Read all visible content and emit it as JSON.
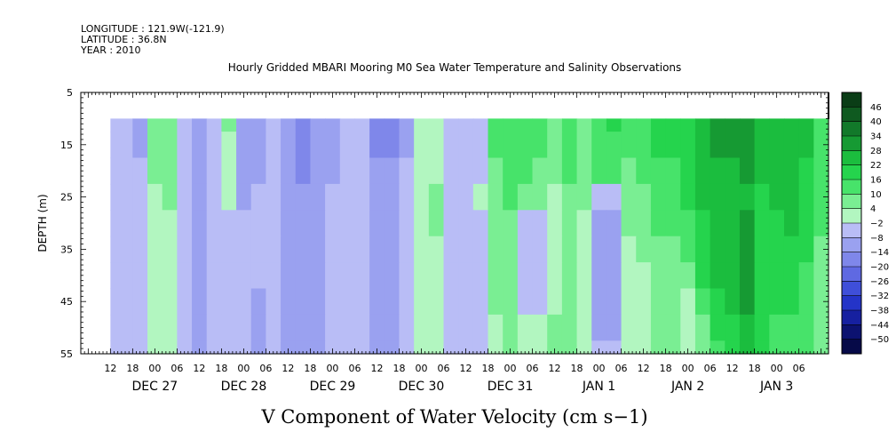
{
  "header": {
    "longitude": "LONGITUDE : 121.9W(-121.9)",
    "latitude": "LATITUDE : 36.8N",
    "year": "YEAR : 2010"
  },
  "chart_data": {
    "type": "heatmap",
    "title": "Hourly Gridded MBARI Mooring M0 Sea Water Temperature and Salinity Observations",
    "xlabel": "V Component of Water Velocity (cm s−1)",
    "ylabel": "DEPTH (m)",
    "ylim": [
      55,
      5
    ],
    "y_ticks": [
      "5",
      "15",
      "25",
      "35",
      "45",
      "55"
    ],
    "x_hour_ticks": [
      "12",
      "18",
      "00",
      "06",
      "12",
      "18",
      "00",
      "06",
      "12",
      "18",
      "00",
      "06",
      "12",
      "18",
      "00",
      "06",
      "12",
      "18",
      "00",
      "06",
      "12",
      "18",
      "00",
      "06",
      "12",
      "18",
      "00",
      "06",
      "12",
      "18",
      "00",
      "06"
    ],
    "x_day_labels": [
      "DEC 27",
      "DEC 28",
      "DEC 29",
      "DEC 30",
      "DEC 31",
      "JAN  1",
      "JAN  2",
      "JAN  3"
    ],
    "colorbar": {
      "labels": [
        "46",
        "40",
        "34",
        "28",
        "22",
        "16",
        "10",
        "4",
        "−2",
        "−8",
        "−14",
        "−20",
        "−26",
        "−32",
        "−38",
        "−44",
        "−50"
      ],
      "colors": [
        "#0a3d16",
        "#0f5a20",
        "#12792a",
        "#169a33",
        "#1bbd3e",
        "#25d44d",
        "#47e36a",
        "#7aee93",
        "#b2f6c0",
        "#b9bdf6",
        "#9aa1f0",
        "#7f87ea",
        "#5f69e2",
        "#3f4fd9",
        "#2434c8",
        "#1620a0",
        "#0c1270",
        "#060a48"
      ]
    },
    "x_hours": [
      -8,
      -4,
      0,
      4,
      8,
      12,
      16,
      20,
      24,
      28,
      32,
      36,
      40,
      44,
      48,
      52,
      56,
      60,
      64,
      68,
      72,
      76,
      80,
      84,
      88,
      92,
      96,
      100,
      104,
      108,
      112,
      116,
      120,
      124,
      128,
      132,
      136,
      140,
      144,
      148,
      152,
      156,
      160,
      164,
      168,
      172,
      176,
      180
    ],
    "depths": [
      10,
      15,
      20,
      25,
      30,
      35,
      40,
      45,
      50,
      55
    ],
    "values": [
      [
        -6,
        -8,
        8,
        10,
        -6,
        -10,
        -4,
        6,
        -8,
        -8,
        -4,
        -12,
        -14,
        -12,
        -8,
        -4,
        -6,
        -14,
        -14,
        -8,
        2,
        4,
        -4,
        -6,
        -4,
        12,
        16,
        14,
        14,
        10,
        14,
        10,
        16,
        18,
        12,
        14,
        18,
        18,
        22,
        28,
        30,
        30,
        30,
        24,
        28,
        28,
        24,
        16
      ],
      [
        -6,
        -8,
        8,
        10,
        -4,
        -10,
        -4,
        4,
        -8,
        -8,
        -4,
        -12,
        -14,
        -12,
        -8,
        -4,
        -6,
        -14,
        -14,
        -8,
        2,
        4,
        -4,
        -6,
        -4,
        12,
        16,
        14,
        12,
        8,
        14,
        10,
        14,
        16,
        12,
        14,
        18,
        18,
        22,
        28,
        30,
        30,
        32,
        24,
        28,
        28,
        24,
        14
      ],
      [
        -6,
        -6,
        6,
        8,
        -4,
        -10,
        -6,
        4,
        -8,
        -8,
        -4,
        -10,
        -14,
        -12,
        -8,
        -4,
        -6,
        -12,
        -12,
        -6,
        2,
        4,
        -4,
        -6,
        -2,
        10,
        14,
        12,
        10,
        6,
        12,
        8,
        12,
        14,
        10,
        12,
        16,
        16,
        20,
        26,
        28,
        28,
        30,
        24,
        26,
        26,
        22,
        14
      ],
      [
        -4,
        -6,
        4,
        6,
        -4,
        -8,
        -6,
        2,
        -8,
        -6,
        -4,
        -10,
        -12,
        -10,
        -6,
        -4,
        -4,
        -12,
        -10,
        -4,
        4,
        6,
        -2,
        -4,
        0,
        10,
        12,
        8,
        6,
        4,
        10,
        6,
        -4,
        -6,
        8,
        10,
        14,
        14,
        18,
        24,
        26,
        26,
        28,
        22,
        24,
        24,
        22,
        12
      ],
      [
        -4,
        -4,
        4,
        4,
        -6,
        -8,
        -6,
        -2,
        -6,
        -6,
        -4,
        -10,
        -12,
        -10,
        -4,
        -4,
        -4,
        -10,
        -10,
        -4,
        4,
        6,
        -2,
        -4,
        -2,
        8,
        10,
        -4,
        -6,
        2,
        8,
        4,
        -8,
        -10,
        6,
        8,
        12,
        12,
        16,
        22,
        26,
        26,
        30,
        22,
        22,
        24,
        20,
        12
      ],
      [
        -4,
        -4,
        2,
        4,
        -6,
        -8,
        -6,
        -2,
        -6,
        -6,
        -4,
        -10,
        -10,
        -8,
        -4,
        -4,
        -4,
        -10,
        -8,
        -4,
        4,
        4,
        -4,
        -4,
        -2,
        8,
        10,
        -6,
        -6,
        0,
        8,
        4,
        -10,
        -10,
        4,
        6,
        10,
        10,
        12,
        20,
        26,
        28,
        32,
        22,
        20,
        22,
        18,
        10
      ],
      [
        -4,
        -4,
        2,
        4,
        -6,
        -8,
        -6,
        -2,
        -6,
        -6,
        -4,
        -10,
        -10,
        -8,
        -4,
        -4,
        -4,
        -10,
        -8,
        -2,
        4,
        4,
        -4,
        -4,
        -2,
        8,
        8,
        -6,
        -6,
        0,
        8,
        4,
        -10,
        -10,
        2,
        4,
        8,
        8,
        10,
        18,
        24,
        28,
        32,
        22,
        20,
        20,
        16,
        10
      ],
      [
        -6,
        -4,
        2,
        4,
        -6,
        -8,
        -6,
        -2,
        -6,
        -8,
        -6,
        -10,
        -10,
        -8,
        -6,
        -4,
        -6,
        -10,
        -8,
        -2,
        4,
        2,
        -4,
        -6,
        -4,
        6,
        6,
        -4,
        -4,
        2,
        8,
        4,
        -10,
        -10,
        2,
        4,
        8,
        6,
        2,
        14,
        20,
        24,
        30,
        22,
        18,
        18,
        16,
        10
      ],
      [
        -6,
        -4,
        2,
        4,
        -6,
        -8,
        -6,
        -2,
        -6,
        -8,
        -6,
        -10,
        -10,
        -8,
        -6,
        -4,
        -6,
        -10,
        -8,
        -2,
        2,
        2,
        -4,
        -6,
        -4,
        4,
        6,
        2,
        2,
        6,
        8,
        4,
        -8,
        -8,
        2,
        4,
        8,
        6,
        2,
        10,
        18,
        22,
        28,
        20,
        16,
        16,
        14,
        8
      ],
      [
        -6,
        -4,
        2,
        4,
        -6,
        -8,
        -6,
        -2,
        -6,
        -8,
        -6,
        -10,
        -10,
        -8,
        -6,
        -4,
        -6,
        -10,
        -8,
        -2,
        2,
        2,
        -4,
        -6,
        -4,
        4,
        6,
        4,
        4,
        6,
        8,
        4,
        -6,
        -6,
        2,
        4,
        8,
        6,
        0,
        8,
        16,
        20,
        26,
        20,
        16,
        16,
        14,
        8
      ]
    ]
  }
}
